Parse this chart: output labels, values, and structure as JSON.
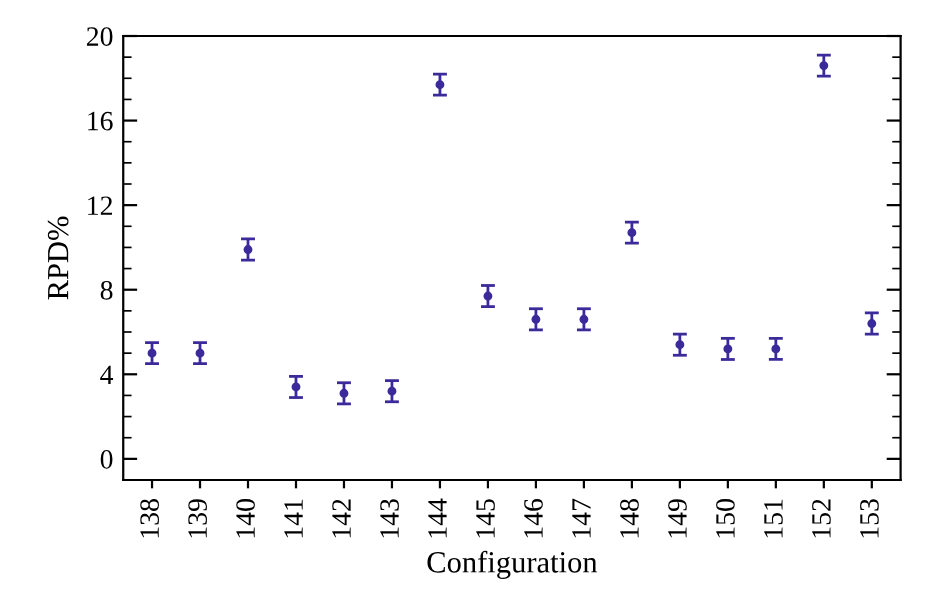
{
  "chart_data": {
    "type": "scatter",
    "xlabel": "Configuration",
    "ylabel": "RPD%",
    "categories": [
      "138",
      "139",
      "140",
      "141",
      "142",
      "143",
      "144",
      "145",
      "146",
      "147",
      "148",
      "149",
      "150",
      "151",
      "152",
      "153"
    ],
    "series": [
      {
        "color": "#3a2a9a",
        "values": [
          5.0,
          5.0,
          9.9,
          3.4,
          3.1,
          3.2,
          17.7,
          7.7,
          6.6,
          6.6,
          10.7,
          5.4,
          5.2,
          5.2,
          18.6,
          6.4
        ],
        "errors": [
          0.5,
          0.5,
          0.5,
          0.5,
          0.5,
          0.5,
          0.5,
          0.5,
          0.5,
          0.5,
          0.5,
          0.5,
          0.5,
          0.5,
          0.5,
          0.5
        ]
      }
    ],
    "ylim": [
      -1,
      20
    ],
    "yticks": [
      0,
      {
        "value": 1,
        "label": null
      },
      {
        "value": 2,
        "label": null
      },
      {
        "value": 3,
        "label": null
      },
      4,
      {
        "value": 5,
        "label": null
      },
      {
        "value": 6,
        "label": null
      },
      {
        "value": 7,
        "label": null
      },
      8,
      {
        "value": 9,
        "label": null
      },
      {
        "value": 10,
        "label": null
      },
      {
        "value": 11,
        "label": null
      },
      12,
      {
        "value": 13,
        "label": null
      },
      {
        "value": 14,
        "label": null
      },
      {
        "value": 15,
        "label": null
      },
      16,
      {
        "value": 17,
        "label": null
      },
      {
        "value": 18,
        "label": null
      },
      {
        "value": 19,
        "label": null
      },
      20
    ],
    "marker": "circle",
    "grid": false,
    "legend": false
  }
}
